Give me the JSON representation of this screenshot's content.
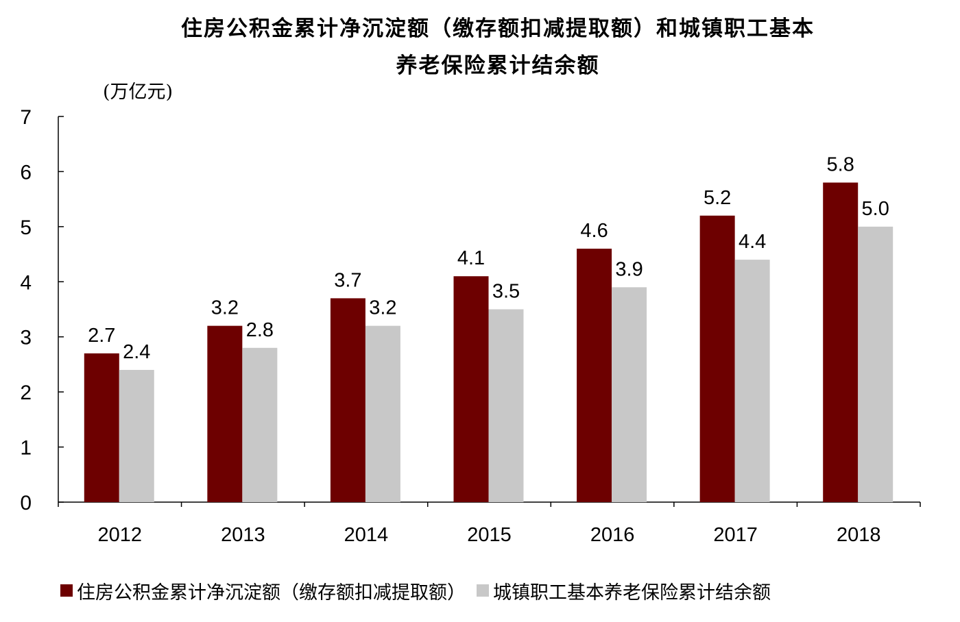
{
  "chart_data": {
    "type": "bar",
    "title_lines": [
      "住房公积金累计净沉淀额（缴存额扣减提取额）和城镇职工基本",
      "养老保险累计结余额"
    ],
    "unit_label": "(万亿元)",
    "categories": [
      "2012",
      "2013",
      "2014",
      "2015",
      "2016",
      "2017",
      "2018"
    ],
    "series": [
      {
        "name": "住房公积金累计净沉淀额（缴存额扣减提取额）",
        "color": "#6d0000",
        "values": [
          2.7,
          3.2,
          3.7,
          4.1,
          4.6,
          5.2,
          5.8
        ],
        "labels": [
          "2.7",
          "3.2",
          "3.7",
          "4.1",
          "4.6",
          "5.2",
          "5.8"
        ]
      },
      {
        "name": "城镇职工基本养老保险累计结余额",
        "color": "#c8c8c8",
        "values": [
          2.4,
          2.8,
          3.2,
          3.5,
          3.9,
          4.4,
          5.0
        ],
        "labels": [
          "2.4",
          "2.8",
          "3.2",
          "3.5",
          "3.9",
          "4.4",
          "5.0"
        ]
      }
    ],
    "ylim": [
      0,
      7
    ],
    "yticks": [
      "0",
      "1",
      "2",
      "3",
      "4",
      "5",
      "6",
      "7"
    ],
    "grid": false,
    "legend_position": "bottom"
  }
}
